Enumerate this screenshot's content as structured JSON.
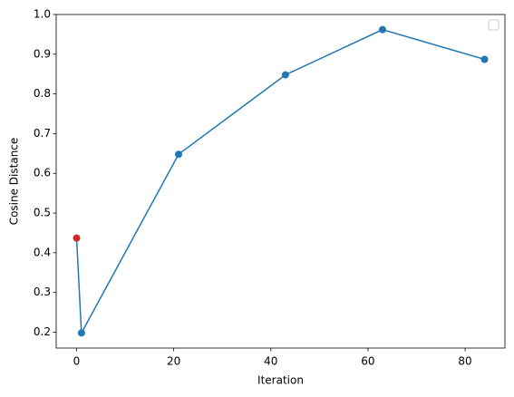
{
  "chart_data": {
    "type": "line",
    "x_label": "Iteration",
    "y_label": "Cosine Distance",
    "x": [
      0,
      1,
      21,
      43,
      63,
      84
    ],
    "series": [
      {
        "color": "#1f77b4",
        "values": [
          0.437,
          0.198,
          0.648,
          0.848,
          0.962,
          0.887
        ]
      }
    ],
    "highlight": {
      "index": 0,
      "color": "#d62728"
    },
    "xlim": [
      -4.2,
      88.2
    ],
    "xticks": [
      0,
      20,
      40,
      60,
      80
    ],
    "ylim": [
      0.16,
      1.0
    ],
    "yticks": [
      0.2,
      0.3,
      0.4,
      0.5,
      0.6,
      0.7,
      0.8,
      0.9,
      {
        "value": 1,
        "label": "1.0"
      }
    ],
    "grid": false
  }
}
